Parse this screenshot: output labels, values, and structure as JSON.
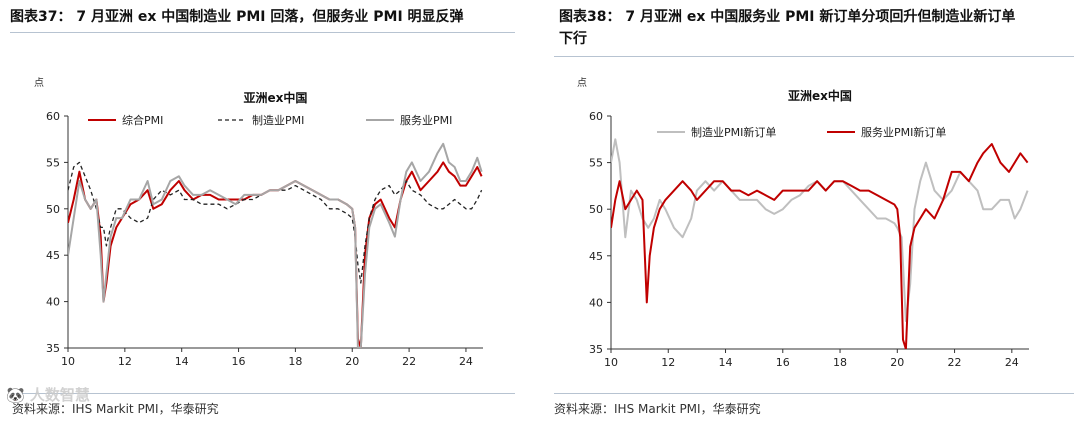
{
  "panels": [
    {
      "title": "图表37：  7 月亚洲 ex 中国制造业 PMI 回落，但服务业 PMI 明显反弹",
      "title2": "",
      "source": "资料来源：IHS Markit PMI，华泰研究",
      "watermark": "🐼 人数智慧"
    },
    {
      "title": "图表38：  7 月亚洲 ex 中国服务业 PMI 新订单分项回升但制造业新订单",
      "title2": "下行",
      "source": "资料来源：IHS Markit PMI，华泰研究"
    }
  ],
  "chart_data": [
    {
      "type": "line",
      "title": "亚洲ex中国",
      "ylabel": "点",
      "xlabel": "",
      "xlim": [
        2010.0,
        2024.6
      ],
      "ylim": [
        35,
        60
      ],
      "yticks": [
        35,
        40,
        45,
        50,
        55,
        60
      ],
      "xticks": [
        10,
        12,
        14,
        16,
        18,
        20,
        22,
        24
      ],
      "legend": "top",
      "grid": false,
      "series": [
        {
          "name": "综合PMI",
          "color": "#c00000",
          "dash": "solid",
          "width": 2,
          "x": [
            2010.0,
            2010.2,
            2010.4,
            2010.6,
            2010.8,
            2011.0,
            2011.15,
            2011.25,
            2011.35,
            2011.5,
            2011.7,
            2011.9,
            2012.2,
            2012.5,
            2012.8,
            2013.0,
            2013.3,
            2013.6,
            2013.9,
            2014.1,
            2014.4,
            2014.7,
            2015.0,
            2015.3,
            2015.6,
            2015.9,
            2016.2,
            2016.5,
            2016.8,
            2017.1,
            2017.4,
            2017.7,
            2018.0,
            2018.3,
            2018.6,
            2018.9,
            2019.2,
            2019.5,
            2019.8,
            2020.0,
            2020.1,
            2020.2,
            2020.3,
            2020.45,
            2020.6,
            2020.8,
            2021.0,
            2021.3,
            2021.5,
            2021.7,
            2021.9,
            2022.1,
            2022.4,
            2022.7,
            2023.0,
            2023.2,
            2023.4,
            2023.6,
            2023.8,
            2024.0,
            2024.2,
            2024.4,
            2024.55
          ],
          "y": [
            48.5,
            51,
            54,
            51,
            50,
            51,
            47,
            40,
            42,
            46,
            48,
            49,
            50.5,
            51,
            52,
            50,
            50.5,
            52,
            53,
            52,
            51,
            51.5,
            51.5,
            51,
            51,
            51,
            51,
            51.5,
            51.5,
            52,
            52,
            52.5,
            53,
            52.5,
            52,
            51.5,
            51,
            51,
            50.5,
            50,
            48,
            36,
            35,
            45,
            49,
            50.5,
            51,
            49,
            48,
            51,
            53,
            54,
            52,
            53,
            54,
            55,
            54,
            53.5,
            52.5,
            52.5,
            53.5,
            54.5,
            53.5
          ]
        },
        {
          "name": "制造业PMI",
          "color": "#222222",
          "dash": "4,3",
          "width": 1.3,
          "x": [
            2010.0,
            2010.2,
            2010.4,
            2010.6,
            2010.8,
            2011.0,
            2011.15,
            2011.25,
            2011.35,
            2011.5,
            2011.7,
            2011.9,
            2012.2,
            2012.5,
            2012.8,
            2013.0,
            2013.3,
            2013.6,
            2013.9,
            2014.1,
            2014.4,
            2014.7,
            2015.0,
            2015.3,
            2015.6,
            2015.9,
            2016.2,
            2016.5,
            2016.8,
            2017.1,
            2017.4,
            2017.7,
            2018.0,
            2018.3,
            2018.6,
            2018.9,
            2019.2,
            2019.5,
            2019.8,
            2020.0,
            2020.1,
            2020.2,
            2020.3,
            2020.45,
            2020.6,
            2020.8,
            2021.0,
            2021.3,
            2021.5,
            2021.7,
            2021.9,
            2022.1,
            2022.4,
            2022.7,
            2023.0,
            2023.2,
            2023.4,
            2023.6,
            2023.8,
            2024.0,
            2024.2,
            2024.4,
            2024.55
          ],
          "y": [
            52,
            54.5,
            55,
            53.5,
            52,
            50,
            48,
            48,
            46,
            48,
            50,
            50,
            49,
            48.5,
            49,
            51,
            52,
            51.5,
            52,
            51,
            51,
            50.5,
            50.5,
            50.5,
            50,
            50.5,
            51,
            51,
            51.5,
            52,
            52,
            52,
            52.5,
            52,
            51.5,
            51,
            50,
            50,
            49.5,
            49,
            47,
            44,
            42,
            46,
            49,
            51,
            52,
            52.5,
            51.5,
            52,
            53,
            52,
            51.5,
            50.5,
            50,
            50,
            50.5,
            51,
            50.5,
            50,
            50,
            51,
            52
          ]
        },
        {
          "name": "服务业PMI",
          "color": "#a6a6a6",
          "dash": "solid",
          "width": 2,
          "x": [
            2010.0,
            2010.2,
            2010.4,
            2010.6,
            2010.8,
            2011.0,
            2011.15,
            2011.25,
            2011.35,
            2011.5,
            2011.7,
            2011.9,
            2012.2,
            2012.5,
            2012.8,
            2013.0,
            2013.3,
            2013.6,
            2013.9,
            2014.1,
            2014.4,
            2014.7,
            2015.0,
            2015.3,
            2015.6,
            2015.9,
            2016.2,
            2016.5,
            2016.8,
            2017.1,
            2017.4,
            2017.7,
            2018.0,
            2018.3,
            2018.6,
            2018.9,
            2019.2,
            2019.5,
            2019.8,
            2020.0,
            2020.1,
            2020.2,
            2020.3,
            2020.45,
            2020.6,
            2020.8,
            2021.0,
            2021.3,
            2021.5,
            2021.7,
            2021.9,
            2022.1,
            2022.4,
            2022.7,
            2023.0,
            2023.2,
            2023.4,
            2023.6,
            2023.8,
            2024.0,
            2024.2,
            2024.4,
            2024.55
          ],
          "y": [
            45,
            49,
            53,
            51,
            50,
            51,
            45,
            40,
            43,
            47,
            49,
            49,
            51,
            51,
            53,
            50.5,
            51,
            53,
            53.5,
            52.5,
            51.5,
            51.5,
            52,
            51.5,
            51,
            50.5,
            51.5,
            51.5,
            51.5,
            52,
            52,
            52.5,
            53,
            52.5,
            52,
            51.5,
            51,
            51,
            50.5,
            50,
            48,
            35,
            35,
            43,
            48,
            50,
            50.5,
            48.5,
            47,
            51,
            54,
            55,
            53,
            54,
            56,
            57,
            55,
            54.5,
            53,
            53,
            54,
            55.5,
            54
          ]
        }
      ]
    },
    {
      "type": "line",
      "title": "亚洲ex中国",
      "ylabel": "点",
      "xlabel": "",
      "xlim": [
        2010.0,
        2024.6
      ],
      "ylim": [
        35,
        60
      ],
      "yticks": [
        35,
        40,
        45,
        50,
        55,
        60
      ],
      "xticks": [
        10,
        12,
        14,
        16,
        18,
        20,
        22,
        24
      ],
      "legend": "top",
      "grid": false,
      "series": [
        {
          "name": "制造业PMI新订单",
          "color": "#bfbfbf",
          "dash": "solid",
          "width": 2,
          "x": [
            2010.0,
            2010.15,
            2010.3,
            2010.5,
            2010.7,
            2010.9,
            2011.1,
            2011.3,
            2011.5,
            2011.7,
            2011.9,
            2012.2,
            2012.5,
            2012.8,
            2013.0,
            2013.3,
            2013.6,
            2013.9,
            2014.2,
            2014.5,
            2014.8,
            2015.1,
            2015.4,
            2015.7,
            2016.0,
            2016.3,
            2016.6,
            2016.9,
            2017.2,
            2017.5,
            2017.8,
            2018.1,
            2018.4,
            2018.7,
            2019.0,
            2019.3,
            2019.6,
            2019.9,
            2020.0,
            2020.15,
            2020.3,
            2020.45,
            2020.6,
            2020.8,
            2021.0,
            2021.3,
            2021.6,
            2021.9,
            2022.2,
            2022.5,
            2022.8,
            2023.0,
            2023.3,
            2023.6,
            2023.9,
            2024.1,
            2024.3,
            2024.55
          ],
          "y": [
            55,
            57.5,
            55,
            47,
            52,
            51,
            49,
            48,
            49,
            51,
            50,
            48,
            47,
            49,
            52,
            53,
            52,
            53,
            52,
            51,
            51,
            51,
            50,
            49.5,
            50,
            51,
            51.5,
            52.5,
            53,
            52,
            53,
            53,
            52,
            51,
            50,
            49,
            49,
            48.5,
            48,
            47,
            38,
            42,
            50,
            53,
            55,
            52,
            51,
            52,
            54,
            53,
            52,
            50,
            50,
            51,
            51,
            49,
            50,
            52
          ]
        },
        {
          "name": "服务业PMI新订单",
          "color": "#c00000",
          "dash": "solid",
          "width": 2,
          "x": [
            2010.0,
            2010.15,
            2010.3,
            2010.5,
            2010.7,
            2010.9,
            2011.1,
            2011.25,
            2011.35,
            2011.5,
            2011.7,
            2011.9,
            2012.2,
            2012.5,
            2012.8,
            2013.0,
            2013.3,
            2013.6,
            2013.9,
            2014.2,
            2014.5,
            2014.8,
            2015.1,
            2015.4,
            2015.7,
            2016.0,
            2016.3,
            2016.6,
            2016.9,
            2017.2,
            2017.5,
            2017.8,
            2018.1,
            2018.4,
            2018.7,
            2019.0,
            2019.3,
            2019.6,
            2019.9,
            2020.0,
            2020.1,
            2020.2,
            2020.3,
            2020.45,
            2020.6,
            2020.8,
            2021.0,
            2021.3,
            2021.6,
            2021.9,
            2022.2,
            2022.5,
            2022.8,
            2023.0,
            2023.3,
            2023.6,
            2023.9,
            2024.1,
            2024.3,
            2024.55
          ],
          "y": [
            48,
            51,
            53,
            50,
            51,
            52,
            51,
            40,
            45,
            48,
            50,
            51,
            52,
            53,
            52,
            51,
            52,
            53,
            53,
            52,
            52,
            51.5,
            52,
            51.5,
            51,
            52,
            52,
            52,
            52,
            53,
            52,
            53,
            53,
            52.5,
            52,
            52,
            51.5,
            51,
            50.5,
            50,
            47,
            36,
            35,
            46,
            48,
            49,
            50,
            49,
            51,
            54,
            54,
            53,
            55,
            56,
            57,
            55,
            54,
            55,
            56,
            55
          ]
        }
      ]
    }
  ]
}
